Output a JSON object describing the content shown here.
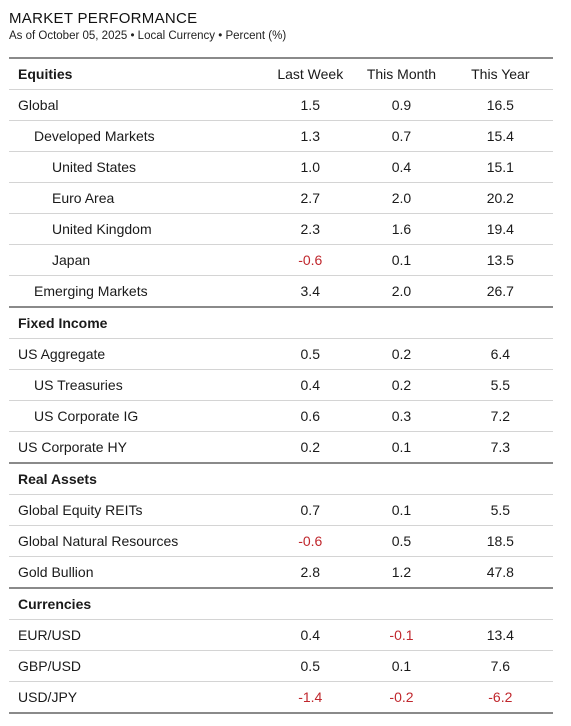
{
  "title": "MARKET PERFORMANCE",
  "subtitle": "As of October 05, 2025 • Local Currency • Percent (%)",
  "columns": [
    "Last Week",
    "This Month",
    "This Year"
  ],
  "sections": [
    {
      "name": "Equities",
      "rows": [
        {
          "label": "Global",
          "values": [
            "1.5",
            "0.9",
            "16.5"
          ]
        },
        {
          "label": "Developed Markets",
          "values": [
            "1.3",
            "0.7",
            "15.4"
          ]
        },
        {
          "label": "United States",
          "values": [
            "1.0",
            "0.4",
            "15.1"
          ]
        },
        {
          "label": "Euro Area",
          "values": [
            "2.7",
            "2.0",
            "20.2"
          ]
        },
        {
          "label": "United Kingdom",
          "values": [
            "2.3",
            "1.6",
            "19.4"
          ]
        },
        {
          "label": "Japan",
          "values": [
            "-0.6",
            "0.1",
            "13.5"
          ]
        },
        {
          "label": "Emerging Markets",
          "values": [
            "3.4",
            "2.0",
            "26.7"
          ]
        }
      ]
    },
    {
      "name": "Fixed Income",
      "rows": [
        {
          "label": "US Aggregate",
          "values": [
            "0.5",
            "0.2",
            "6.4"
          ]
        },
        {
          "label": "US Treasuries",
          "values": [
            "0.4",
            "0.2",
            "5.5"
          ]
        },
        {
          "label": "US Corporate IG",
          "values": [
            "0.6",
            "0.3",
            "7.2"
          ]
        },
        {
          "label": "US Corporate HY",
          "values": [
            "0.2",
            "0.1",
            "7.3"
          ]
        }
      ]
    },
    {
      "name": "Real Assets",
      "rows": [
        {
          "label": "Global Equity REITs",
          "values": [
            "0.7",
            "0.1",
            "5.5"
          ]
        },
        {
          "label": "Global Natural Resources",
          "values": [
            "-0.6",
            "0.5",
            "18.5"
          ]
        },
        {
          "label": "Gold Bullion",
          "values": [
            "2.8",
            "1.2",
            "47.8"
          ]
        }
      ]
    },
    {
      "name": "Currencies",
      "rows": [
        {
          "label": "EUR/USD",
          "values": [
            "0.4",
            "-0.1",
            "13.4"
          ]
        },
        {
          "label": "GBP/USD",
          "values": [
            "0.5",
            "0.1",
            "7.6"
          ]
        },
        {
          "label": "USD/JPY",
          "values": [
            "-1.4",
            "-0.2",
            "-6.2"
          ]
        }
      ]
    }
  ],
  "colors": {
    "negative": "#c0272d",
    "rule": "#8a8a8a",
    "divider": "#d4d4d4"
  }
}
